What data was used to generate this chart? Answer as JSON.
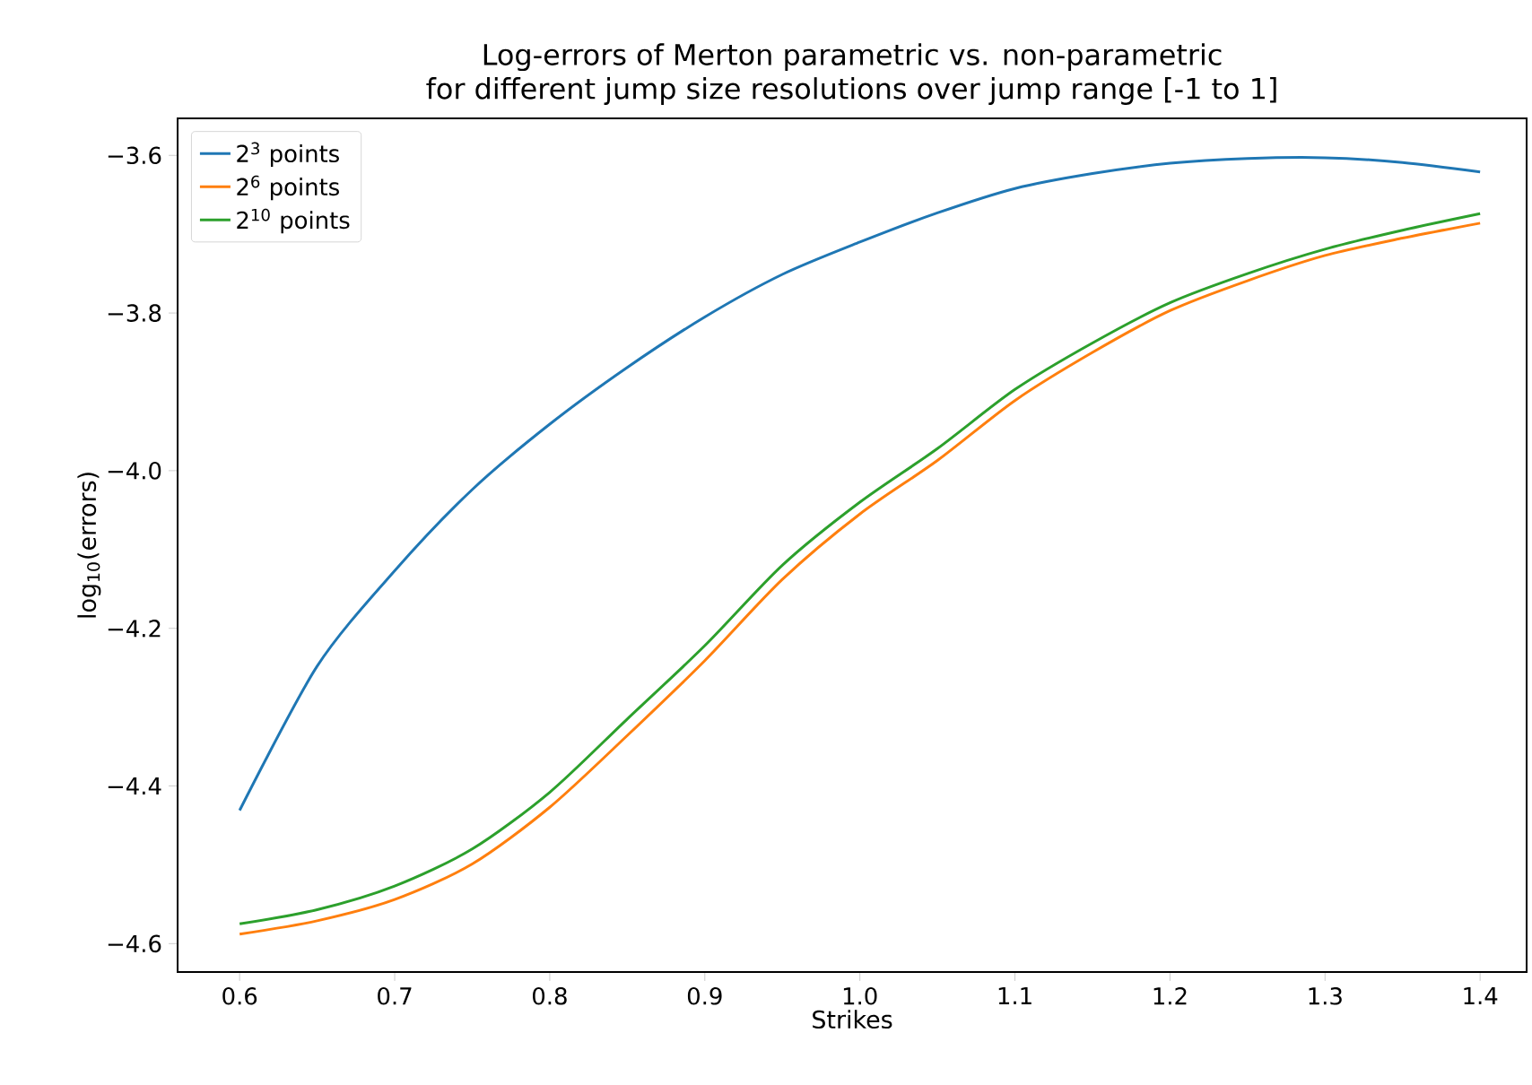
{
  "chart_data": {
    "type": "line",
    "title": "Log-errors of Merton parametric vs. non-parametric\nfor different jump size resolutions over jump range [-1 to 1]",
    "xlabel": "Strikes",
    "ylabel": "log$_{10}$(errors)",
    "x": [
      0.6,
      0.65,
      0.7,
      0.75,
      0.8,
      0.85,
      0.9,
      0.95,
      1.0,
      1.05,
      1.1,
      1.15,
      1.2,
      1.25,
      1.3,
      1.35,
      1.4
    ],
    "series": [
      {
        "name": "2$^{3}$ points",
        "color": "#1f77b4",
        "values": [
          -4.431,
          -4.248,
          -4.127,
          -4.024,
          -3.941,
          -3.869,
          -3.805,
          -3.751,
          -3.71,
          -3.673,
          -3.642,
          -3.623,
          -3.61,
          -3.604,
          -3.603,
          -3.609,
          -3.621
        ]
      },
      {
        "name": "2$^{6}$ points",
        "color": "#ff7f0e",
        "values": [
          -4.588,
          -4.571,
          -4.544,
          -4.499,
          -4.427,
          -4.336,
          -4.241,
          -4.138,
          -4.055,
          -3.987,
          -3.911,
          -3.85,
          -3.797,
          -3.759,
          -3.727,
          -3.705,
          -3.686
        ]
      },
      {
        "name": "2$^{10}$ points",
        "color": "#2ca02c",
        "values": [
          -4.575,
          -4.557,
          -4.527,
          -4.48,
          -4.408,
          -4.315,
          -4.222,
          -4.12,
          -4.04,
          -3.972,
          -3.897,
          -3.838,
          -3.787,
          -3.75,
          -3.719,
          -3.695,
          -3.674
        ]
      }
    ],
    "xlim": [
      0.56,
      1.43
    ],
    "ylim": [
      -4.636,
      -3.553
    ],
    "xticks": [
      0.6,
      0.7,
      0.8,
      0.9,
      {
        "value": 1.0,
        "label": "1.0"
      },
      1.1,
      1.2,
      1.3,
      1.4
    ],
    "yticks": [
      {
        "value": -4.6,
        "label": "−4.6"
      },
      {
        "value": -4.4,
        "label": "−4.4"
      },
      {
        "value": -4.2,
        "label": "−4.2"
      },
      {
        "value": -4.0,
        "label": "−4.0"
      },
      {
        "value": -3.8,
        "label": "−3.8"
      },
      {
        "value": -3.6,
        "label": "−3.6"
      }
    ],
    "legend": "top left",
    "grid": false,
    "marker": "none",
    "line_style": "solid"
  }
}
